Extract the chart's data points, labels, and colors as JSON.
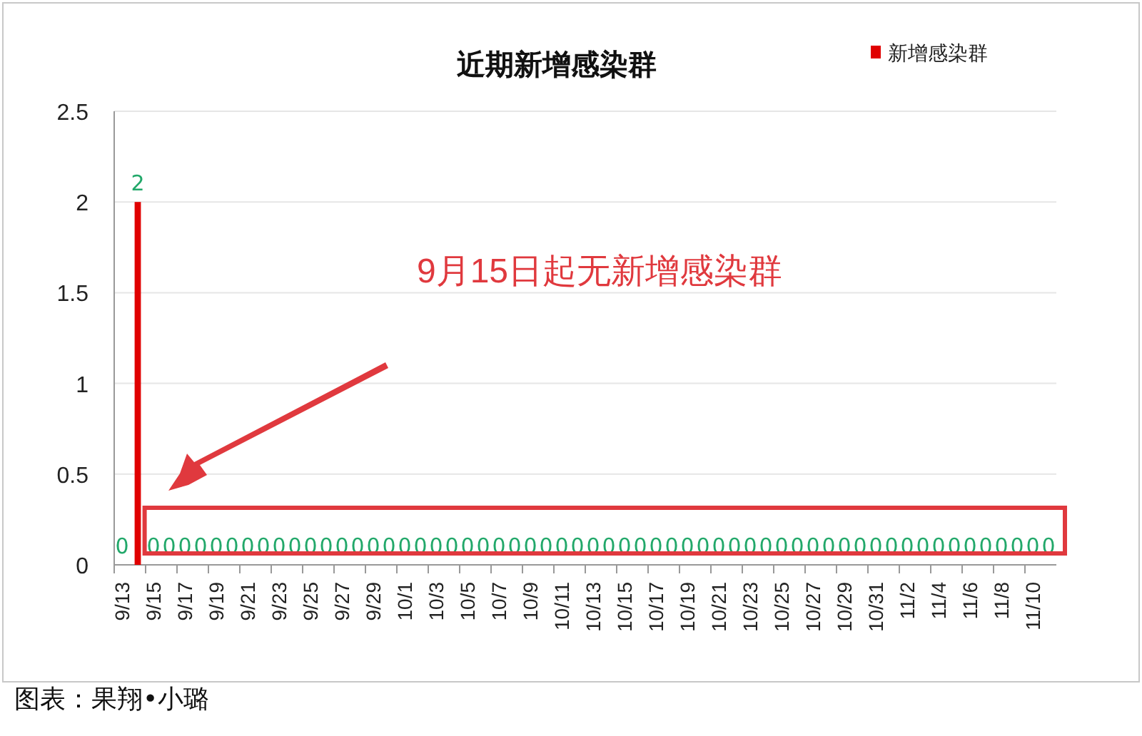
{
  "chart_data": {
    "type": "bar",
    "title": "近期新增感染群",
    "categories": [
      "9/13",
      null,
      "9/15",
      null,
      "9/17",
      null,
      "9/19",
      null,
      "9/21",
      null,
      "9/23",
      null,
      "9/25",
      null,
      "9/27",
      null,
      "9/29",
      null,
      "10/1",
      null,
      "10/3",
      null,
      "10/5",
      null,
      "10/7",
      null,
      "10/9",
      null,
      "10/11",
      null,
      "10/13",
      null,
      "10/15",
      null,
      "10/17",
      null,
      "10/19",
      null,
      "10/21",
      null,
      "10/23",
      null,
      "10/25",
      null,
      "10/27",
      null,
      "10/29",
      null,
      "10/31",
      null,
      "11/2",
      null,
      "11/4",
      null,
      "11/6",
      null,
      "11/8",
      null,
      "11/10",
      null
    ],
    "series": [
      {
        "name": "新增感染群",
        "color": "#e00000",
        "values": [
          0,
          2,
          0,
          0,
          0,
          0,
          0,
          0,
          0,
          0,
          0,
          0,
          0,
          0,
          0,
          0,
          0,
          0,
          0,
          0,
          0,
          0,
          0,
          0,
          0,
          0,
          0,
          0,
          0,
          0,
          0,
          0,
          0,
          0,
          0,
          0,
          0,
          0,
          0,
          0,
          0,
          0,
          0,
          0,
          0,
          0,
          0,
          0,
          0,
          0,
          0,
          0,
          0,
          0,
          0,
          0,
          0,
          0,
          0,
          0
        ]
      }
    ],
    "ylim": [
      0,
      2.5
    ],
    "yticks": [
      0,
      {
        "value": 0.5,
        "label": "0.5"
      },
      1,
      {
        "value": 1.5,
        "label": "1.5"
      },
      2,
      {
        "value": 2.5,
        "label": "2.5"
      }
    ],
    "grid": "y",
    "legend": "top right",
    "data_labels": true,
    "annotations": [
      "9月15日起无新增感染群",
      "图表：果翔•小璐"
    ]
  }
}
